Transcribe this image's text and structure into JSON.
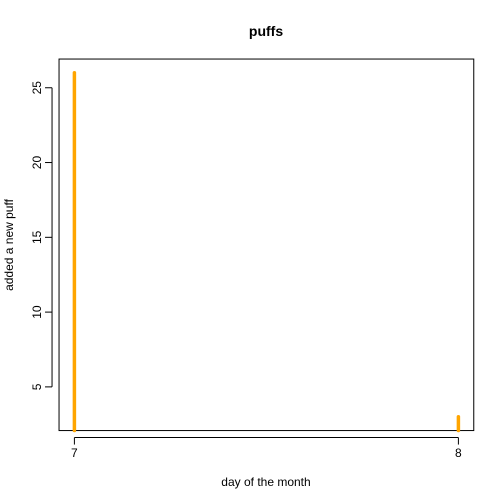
{
  "chart_data": {
    "type": "bar",
    "title": "puffs",
    "xlabel": "day of the month",
    "ylabel": "added a new puff",
    "x": [
      7,
      8
    ],
    "values": [
      26,
      3
    ],
    "xlim": [
      6.96,
      8.04
    ],
    "ylim": [
      2.08,
      26.92
    ],
    "xticks": [
      "7",
      "8"
    ],
    "yticks": [
      "5",
      "10",
      "15",
      "20",
      "25"
    ],
    "bar_color": "#FFA500",
    "grid": false
  }
}
